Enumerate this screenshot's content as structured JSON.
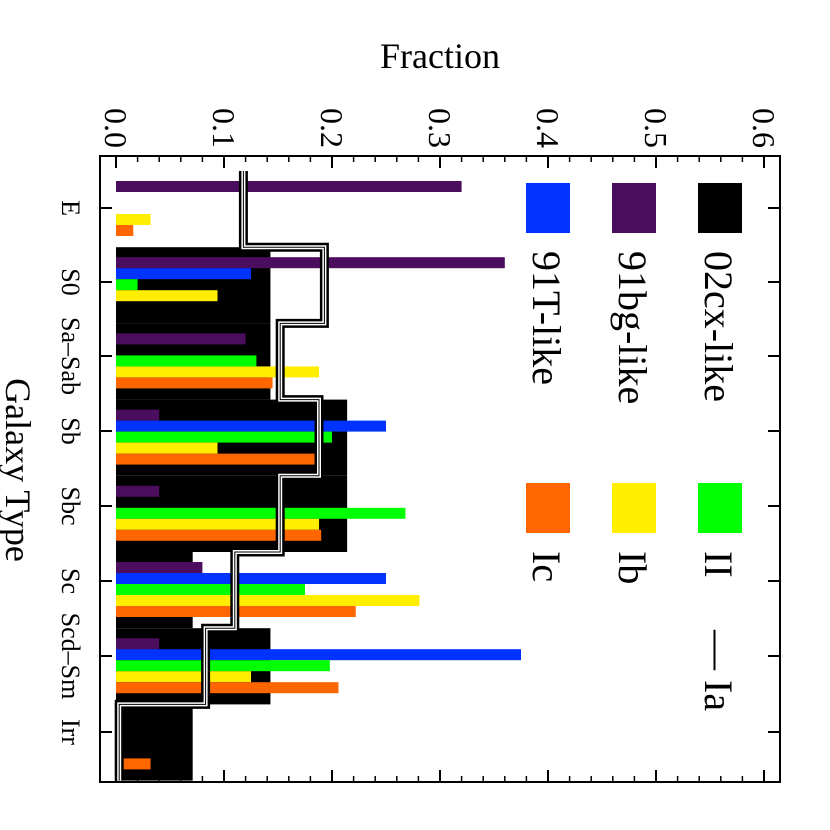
{
  "chart_data": {
    "type": "bar",
    "orientation": "rotated-90",
    "xlabel": "Galaxy Type",
    "ylabel": "Fraction",
    "ylim": [
      0.0,
      0.6
    ],
    "yticks": [
      "0.0",
      "0.1",
      "0.2",
      "0.3",
      "0.4",
      "0.5",
      "0.6"
    ],
    "categories": [
      "E",
      "S0",
      "Sa–Sab",
      "Sb",
      "Sbc",
      "Sc",
      "Scd–Sm",
      "Irr"
    ],
    "series": [
      {
        "name": "02cx-like",
        "color": "#000000",
        "values": [
          0.0,
          0.143,
          0.143,
          0.214,
          0.214,
          0.071,
          0.143,
          0.071
        ]
      },
      {
        "name": "91bg-like",
        "color": "#4b0d5e",
        "values": [
          0.32,
          0.36,
          0.12,
          0.04,
          0.04,
          0.08,
          0.04,
          0.0
        ]
      },
      {
        "name": "91T-like",
        "color": "#0033ff",
        "values": [
          0.0,
          0.125,
          0.0,
          0.25,
          0.0,
          0.25,
          0.375,
          0.0
        ]
      },
      {
        "name": "II",
        "color": "#00ff00",
        "values": [
          0.0,
          0.02,
          0.13,
          0.2,
          0.268,
          0.175,
          0.198,
          0.006
        ]
      },
      {
        "name": "Ib",
        "color": "#ffee00",
        "values": [
          0.032,
          0.094,
          0.188,
          0.094,
          0.188,
          0.281,
          0.125,
          0.0
        ]
      },
      {
        "name": "Ic",
        "color": "#ff6600",
        "values": [
          0.016,
          0.0,
          0.145,
          0.187,
          0.19,
          0.222,
          0.206,
          0.032
        ]
      }
    ],
    "line_series": {
      "name": "Ia",
      "color": "#000000",
      "values": [
        0.118,
        0.193,
        0.152,
        0.188,
        0.152,
        0.11,
        0.083,
        0.003
      ]
    },
    "legend": {
      "placement": "top-right",
      "columns": [
        [
          "02cx-like",
          "91bg-like",
          "91T-like"
        ],
        [
          "II",
          "Ib",
          "Ic"
        ]
      ],
      "line_label": "Ia",
      "line_marker": "—"
    }
  }
}
